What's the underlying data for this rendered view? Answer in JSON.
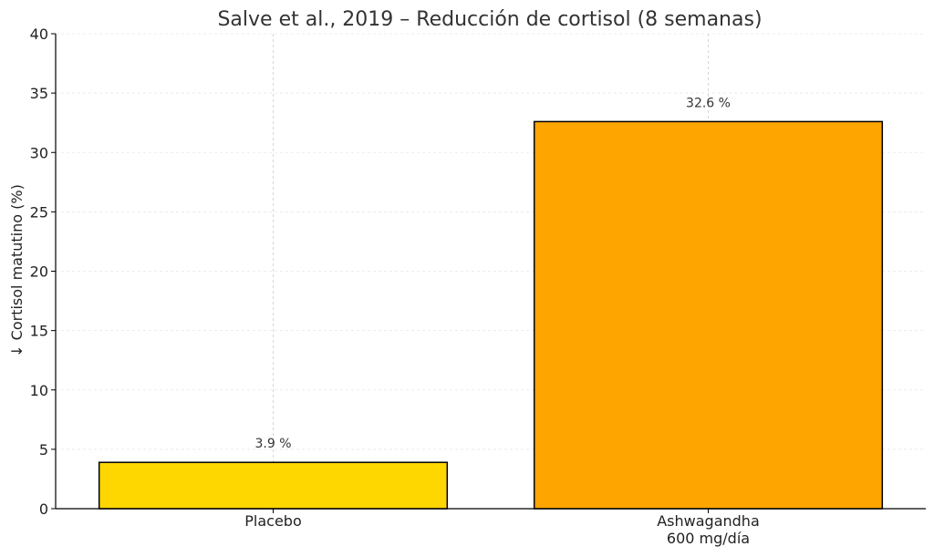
{
  "chart_data": {
    "type": "bar",
    "title": "Salve et al., 2019 – Reducción de cortisol (8 semanas)",
    "xlabel": "",
    "ylabel": "↓ Cortisol matutino (%)",
    "ylim": [
      0,
      40
    ],
    "yticks": [
      0,
      5,
      10,
      15,
      20,
      25,
      30,
      35,
      40
    ],
    "grid": true,
    "categories": [
      "Placebo",
      "Ashwagandha\n600 mg/día"
    ],
    "values": [
      3.9,
      32.6
    ],
    "data_labels": [
      "3.9 %",
      "32.6 %"
    ],
    "colors": [
      "#FFD700",
      "#FFA500"
    ],
    "edge_color": "#000000"
  }
}
